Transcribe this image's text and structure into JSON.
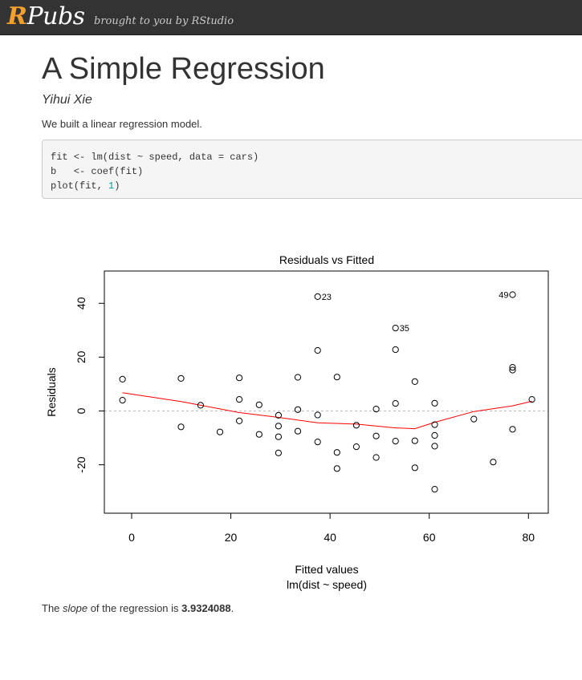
{
  "header": {
    "logo_r": "R",
    "logo_rest": "Pubs",
    "tagline": "brought to you by RStudio"
  },
  "article": {
    "title": "A Simple Regression",
    "author": "Yihui Xie",
    "intro": "We built a linear regression model.",
    "code": {
      "line1": "fit <- lm(dist ~ speed, data = cars)",
      "line2": "b   <- coef(fit)",
      "line3_pre": "plot(fit, ",
      "line3_num": "1",
      "line3_post": ")"
    },
    "result": {
      "pre": "The ",
      "em": "slope",
      "mid": " of the regression is ",
      "value": "3.9324088",
      "post": "."
    }
  },
  "chart_data": {
    "type": "scatter",
    "title": "Residuals vs Fitted",
    "xlabel": "Fitted values",
    "sublabel": "lm(dist ~ speed)",
    "ylabel": "Residuals",
    "xlim": [
      -5.5,
      84
    ],
    "ylim": [
      -38,
      52
    ],
    "xticks": [
      "0",
      "20",
      "40",
      "60",
      "80"
    ],
    "yticks": [
      "-20",
      "0",
      "20",
      "40"
    ],
    "zero_line": 0,
    "colors": {
      "points": "#000000",
      "smooth": "#ff0000",
      "zero_line": "#bbbbbb"
    },
    "points": [
      [
        -1.85,
        4
      ],
      [
        -1.85,
        11.8
      ],
      [
        9.95,
        -5.9
      ],
      [
        9.95,
        12.1
      ],
      [
        13.9,
        2.1
      ],
      [
        17.8,
        -7.8
      ],
      [
        21.7,
        -3.7
      ],
      [
        21.7,
        4.3
      ],
      [
        21.7,
        12.3
      ],
      [
        25.7,
        -8.7
      ],
      [
        25.7,
        2.3
      ],
      [
        29.6,
        -15.6
      ],
      [
        29.6,
        -9.6
      ],
      [
        29.6,
        -5.6
      ],
      [
        29.6,
        -1.6
      ],
      [
        33.5,
        -7.5
      ],
      [
        33.5,
        0.5
      ],
      [
        33.5,
        12.5
      ],
      [
        37.5,
        -11.5
      ],
      [
        37.5,
        -1.5
      ],
      [
        37.5,
        22.5
      ],
      [
        37.5,
        42.5
      ],
      [
        41.4,
        -21.4
      ],
      [
        41.4,
        -15.4
      ],
      [
        41.4,
        12.6
      ],
      [
        45.3,
        -13.3
      ],
      [
        45.3,
        -5.3
      ],
      [
        49.3,
        -17.3
      ],
      [
        49.3,
        -9.3
      ],
      [
        49.3,
        0.7
      ],
      [
        53.2,
        -11.2
      ],
      [
        53.2,
        2.8
      ],
      [
        53.2,
        22.8
      ],
      [
        53.2,
        30.8
      ],
      [
        57.1,
        -21.1
      ],
      [
        57.1,
        -11.1
      ],
      [
        57.1,
        10.9
      ],
      [
        61.1,
        -29.1
      ],
      [
        61.1,
        -13.1
      ],
      [
        61.1,
        -9.1
      ],
      [
        61.1,
        -5.1
      ],
      [
        61.1,
        2.9
      ],
      [
        69,
        -3
      ],
      [
        72.9,
        -19
      ],
      [
        76.8,
        -6.8
      ],
      [
        76.8,
        15.2
      ],
      [
        76.8,
        16.2
      ],
      [
        76.8,
        43.2
      ],
      [
        80.7,
        4.3
      ]
    ],
    "labels": [
      {
        "text": "23",
        "x": 37.5,
        "y": 42.5,
        "side": "right"
      },
      {
        "text": "35",
        "x": 53.2,
        "y": 30.8,
        "side": "right"
      },
      {
        "text": "49",
        "x": 76.8,
        "y": 43.2,
        "side": "left"
      }
    ],
    "smooth": [
      [
        -1.85,
        6.8
      ],
      [
        9.95,
        3.5
      ],
      [
        21.7,
        -0.6
      ],
      [
        29.6,
        -2.4
      ],
      [
        37.5,
        -4.4
      ],
      [
        45.3,
        -4.9
      ],
      [
        53.2,
        -6.3
      ],
      [
        57.1,
        -6.6
      ],
      [
        61.1,
        -4.2
      ],
      [
        69,
        -0.2
      ],
      [
        76.8,
        1.9
      ],
      [
        80.7,
        3.6
      ]
    ]
  }
}
